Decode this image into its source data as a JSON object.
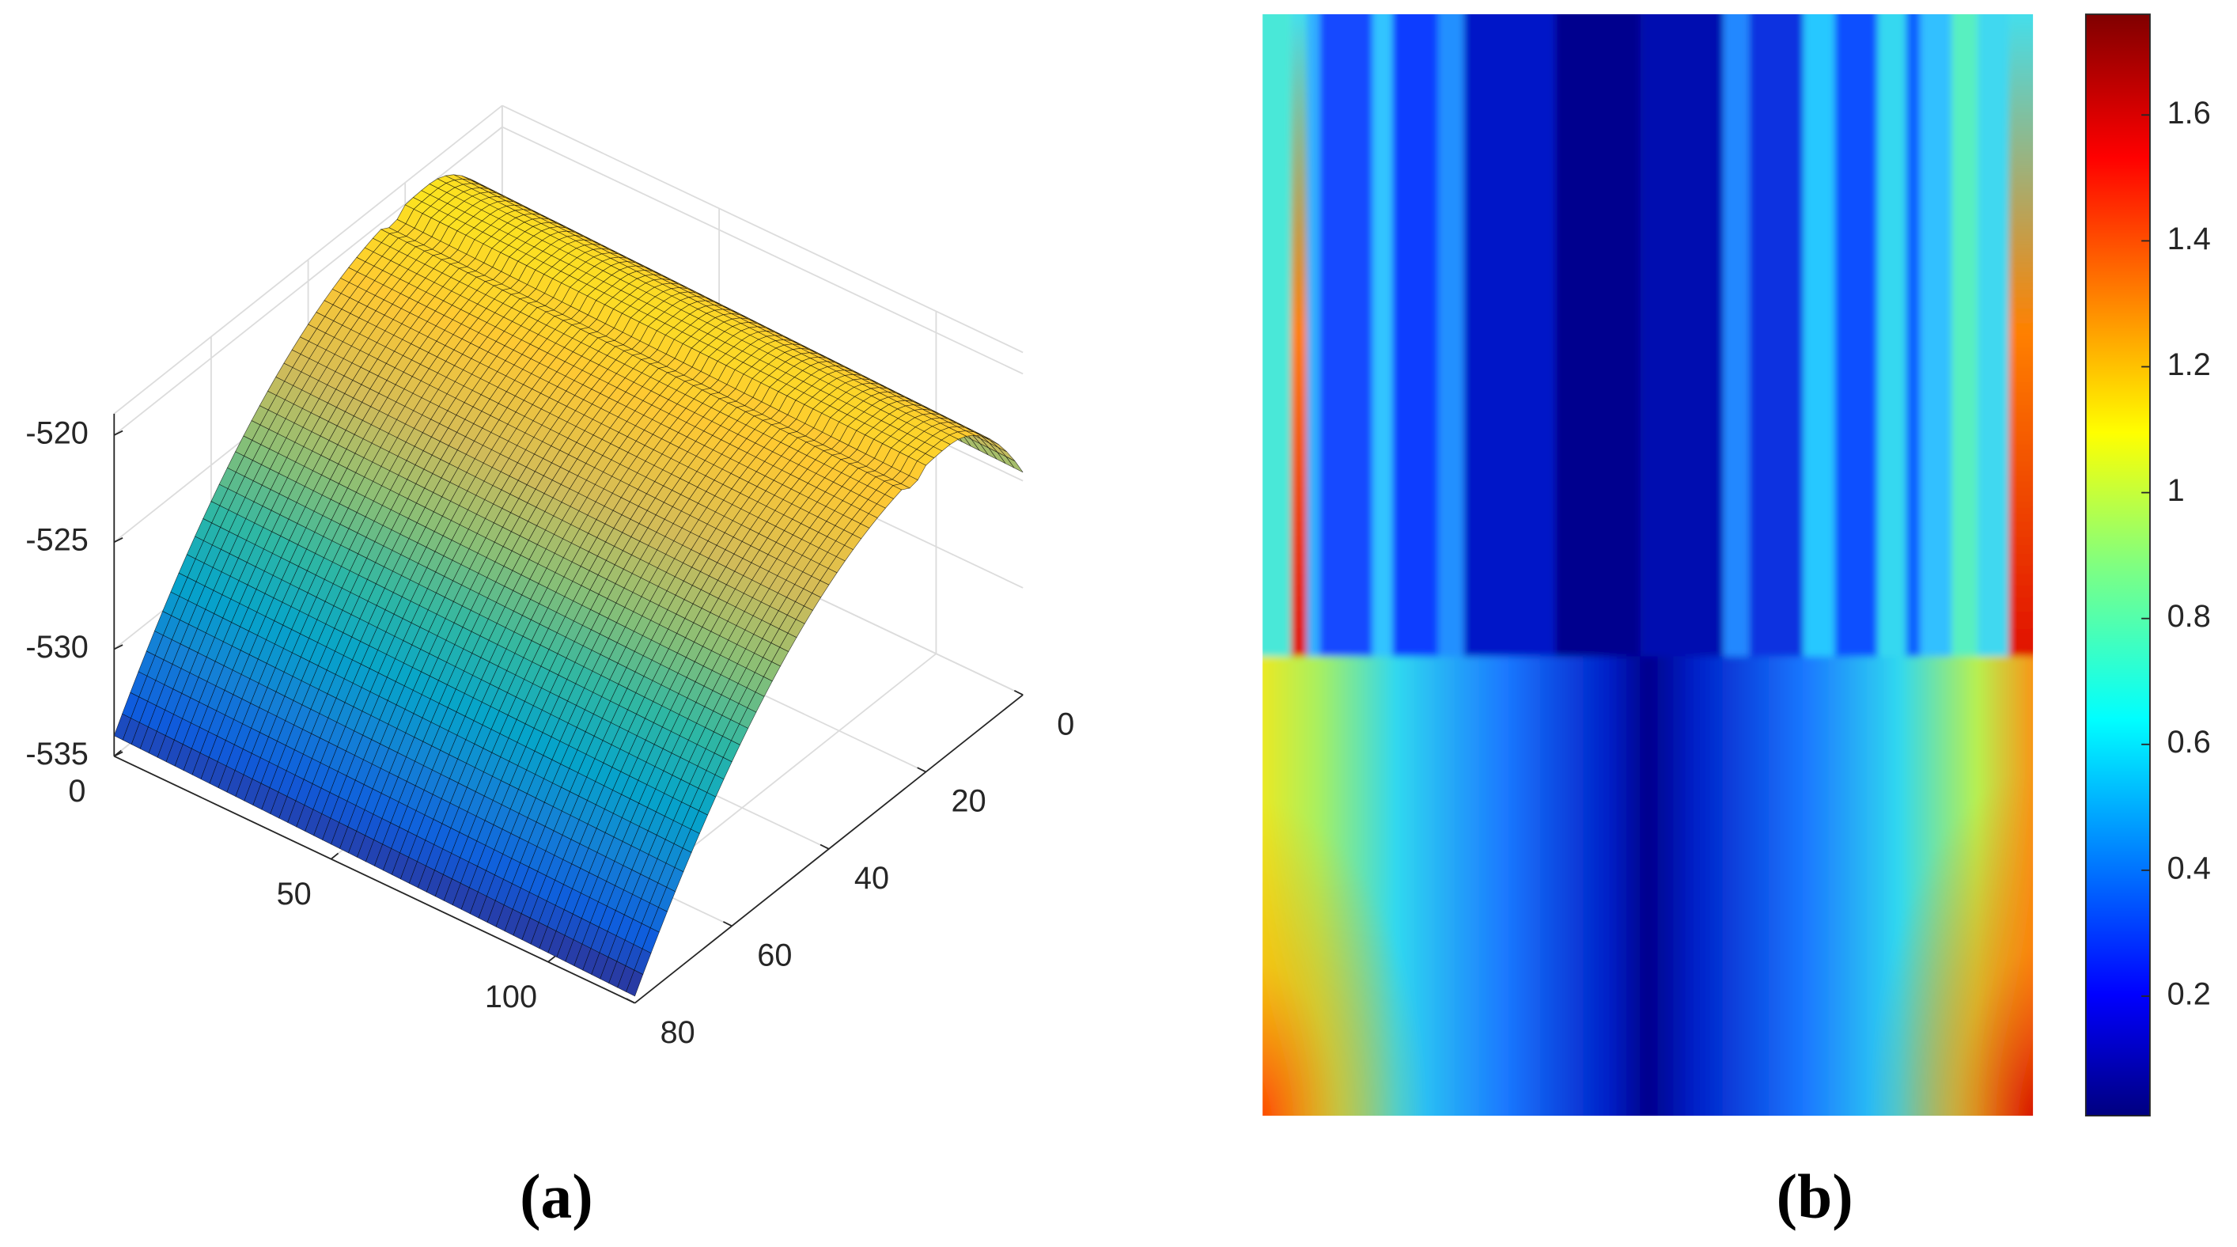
{
  "chart_data": [
    {
      "type": "surface3d",
      "label": "(a)",
      "xlim": [
        0,
        120
      ],
      "ylim": [
        0,
        80
      ],
      "zlim": [
        -535,
        -519
      ],
      "xticks": [
        0,
        50,
        100
      ],
      "yticks": [
        0,
        20,
        40,
        60,
        80
      ],
      "zticks": [
        -535,
        -530,
        -525,
        -520
      ],
      "grid": true,
      "colormap": "parula"
    },
    {
      "type": "heatmap",
      "label": "(b)",
      "colormap": "jet",
      "clim": [
        0.01,
        1.76
      ],
      "cticks": [
        0.2,
        0.4,
        0.6,
        0.8,
        1,
        1.2,
        1.4,
        1.6
      ],
      "colorbar": true
    }
  ]
}
